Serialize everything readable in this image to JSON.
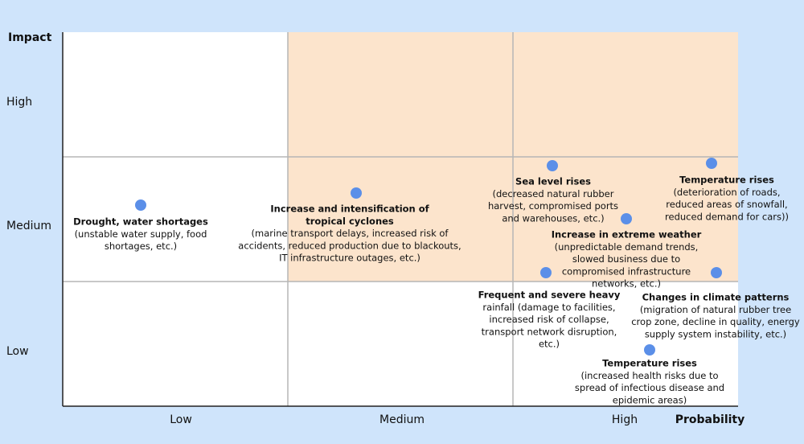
{
  "axes": {
    "y_title": "Impact",
    "y_levels": [
      "High",
      "Medium",
      "Low"
    ],
    "x_levels": [
      "Low",
      "Medium",
      "High"
    ],
    "x_title": "Probability"
  },
  "risks": [
    {
      "title": [
        "Drought, water shortages"
      ],
      "description": [
        "(unstable water supply, food",
        "shortages, etc.)"
      ]
    },
    {
      "title": [
        "Increase and intensification of",
        "tropical cyclones"
      ],
      "description": [
        "(marine transport delays, increased risk of",
        "accidents, reduced production due to blackouts,",
        "IT infrastructure outages, etc.)"
      ]
    },
    {
      "title": [
        "Sea level rises"
      ],
      "description": [
        "(decreased natural rubber",
        "harvest, compromised ports",
        "and warehouses, etc.)"
      ]
    },
    {
      "title": [
        "Temperature rises"
      ],
      "description": [
        "(deterioration of roads,",
        "reduced areas of snowfall,",
        "reduced demand for cars))"
      ]
    },
    {
      "title": [
        "Increase in extreme weather"
      ],
      "description": [
        "(unpredictable demand trends,",
        "slowed business due to",
        "compromised infrastructure",
        "networks, etc.)"
      ]
    },
    {
      "title": [
        "Frequent and severe heavy"
      ],
      "description": [
        "rainfall (damage to facilities,",
        "increased risk of collapse,",
        "transport network disruption,",
        "etc.)"
      ]
    },
    {
      "title": [
        "Changes in climate patterns"
      ],
      "description": [
        "(migration of natural rubber tree",
        "crop zone, decline in quality, energy",
        "supply system instability, etc.)"
      ]
    },
    {
      "title": [
        "Temperature rises"
      ],
      "description": [
        "(increased health risks due to",
        "spread of infectious disease and",
        "epidemic areas)"
      ]
    }
  ]
}
